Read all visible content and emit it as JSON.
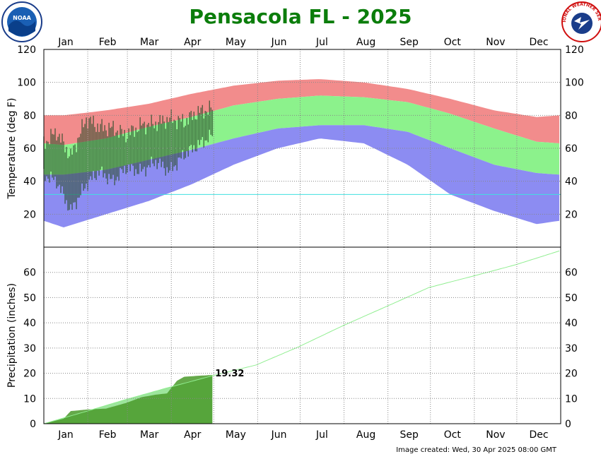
{
  "header": {
    "title": "Pensacola FL - 2025",
    "noaa_logo_text": "NOAA",
    "nws_logo_text": "NATIONAL WEATHER SERVICE"
  },
  "footer": {
    "created": "Image created: Wed, 30 Apr 2025 08:00 GMT"
  },
  "colors": {
    "title": "#0b7d0b",
    "record_high": "#f28c8c",
    "normal_range": "#8cf28c",
    "record_low": "#8c8cf2",
    "observed": "#2a4d2a",
    "precip_observed": "#4a9a2a",
    "precip_normal": "#8ce08c",
    "precip_line": "#90ee90",
    "freezing_line": "#40e0e0",
    "grid": "#888888"
  },
  "chart_data": [
    {
      "type": "bar",
      "panel": "temperature",
      "ylabel": "Temperature (deg F)",
      "ylim": [
        0,
        120
      ],
      "yticks": [
        20,
        40,
        60,
        80,
        100,
        120
      ],
      "months": [
        "Jan",
        "Feb",
        "Mar",
        "Apr",
        "May",
        "Jun",
        "Jul",
        "Aug",
        "Sep",
        "Oct",
        "Nov",
        "Dec"
      ],
      "grid": true,
      "freezing_line": 32,
      "normals": {
        "x_day": [
          1,
          15,
          45,
          75,
          105,
          135,
          166,
          196,
          227,
          258,
          288,
          319,
          349,
          365
        ],
        "normal_high": [
          63,
          62,
          66,
          73,
          79,
          86,
          90,
          92,
          91,
          88,
          81,
          72,
          64,
          63
        ],
        "normal_low": [
          44,
          44,
          47,
          53,
          59,
          66,
          72,
          74,
          74,
          70,
          60,
          50,
          45,
          44
        ],
        "record_high": [
          80,
          80,
          83,
          87,
          93,
          98,
          101,
          102,
          100,
          96,
          90,
          83,
          79,
          80
        ],
        "record_low": [
          16,
          12,
          20,
          28,
          38,
          50,
          60,
          66,
          63,
          50,
          32,
          22,
          14,
          16
        ]
      },
      "observed": {
        "days": [
          1,
          10,
          20,
          31,
          40,
          50,
          59,
          70,
          80,
          90,
          100,
          110,
          120
        ],
        "high": [
          63,
          70,
          55,
          78,
          73,
          72,
          68,
          74,
          75,
          78,
          76,
          82,
          84
        ],
        "low": [
          44,
          40,
          22,
          38,
          46,
          40,
          48,
          46,
          52,
          46,
          56,
          62,
          68
        ]
      }
    },
    {
      "type": "area",
      "panel": "precipitation",
      "ylabel": "Precipitation (inches)",
      "ylim": [
        0,
        70
      ],
      "yticks": [
        0,
        10,
        20,
        30,
        40,
        50,
        60
      ],
      "months": [
        "Jan",
        "Feb",
        "Mar",
        "Apr",
        "May",
        "Jun",
        "Jul",
        "Aug",
        "Sep",
        "Oct",
        "Nov",
        "Dec"
      ],
      "grid": true,
      "normal_cumulative": {
        "x_day": [
          1,
          31,
          59,
          90,
          120,
          151,
          181,
          212,
          243,
          273,
          304,
          334,
          365
        ],
        "values": [
          0,
          4.9,
          9.6,
          14.5,
          19.0,
          23.3,
          30.5,
          38.8,
          46.5,
          54.0,
          58.5,
          63.0,
          68.5
        ]
      },
      "observed_cumulative": {
        "x_day": [
          1,
          8,
          15,
          20,
          31,
          45,
          59,
          70,
          80,
          88,
          95,
          100,
          110,
          120
        ],
        "values": [
          0,
          1.0,
          2.0,
          5.0,
          5.6,
          6.0,
          8.2,
          10.5,
          11.5,
          12.0,
          17.0,
          18.6,
          19.0,
          19.32
        ]
      },
      "annotation": "19.32"
    }
  ]
}
